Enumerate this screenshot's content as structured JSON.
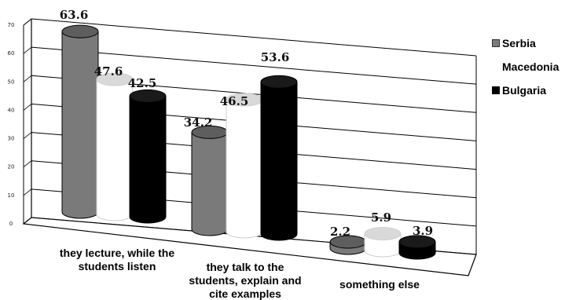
{
  "chart_data": {
    "type": "bar",
    "categories": [
      [
        "they lecture, while the",
        "students listen"
      ],
      [
        "they talk to the",
        "students, explain and",
        "cite examples"
      ],
      [
        "something else"
      ]
    ],
    "series": [
      {
        "name": "Serbia",
        "color": "#7a7a7a",
        "values": [
          63.6,
          34.2,
          2.2
        ]
      },
      {
        "name": "Macedonia",
        "color": "#ffffff",
        "values": [
          47.6,
          46.5,
          5.9
        ]
      },
      {
        "name": "Bulgaria",
        "color": "#000000",
        "values": [
          42.5,
          53.6,
          3.9
        ]
      }
    ],
    "data_labels": [
      [
        "63.6",
        "47.6",
        "42.5"
      ],
      [
        "34.2",
        "46.5",
        "53.6"
      ],
      [
        "2.2",
        "5.9",
        "3.9"
      ]
    ],
    "yticks": [
      "0",
      "10",
      "20",
      "30",
      "40",
      "50",
      "60",
      "70"
    ],
    "ylim": [
      0,
      70
    ],
    "grid": true,
    "legend_position": "right"
  }
}
